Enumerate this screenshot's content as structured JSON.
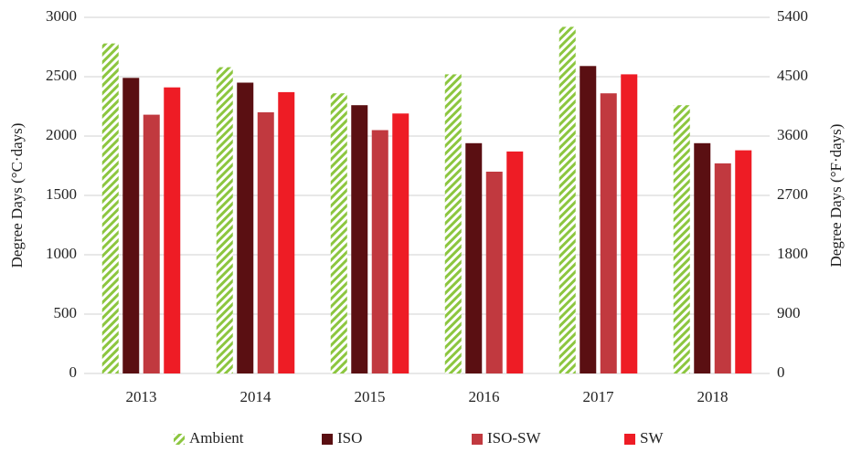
{
  "chart_data": {
    "type": "bar",
    "categories": [
      "2013",
      "2014",
      "2015",
      "2016",
      "2017",
      "2018"
    ],
    "series": [
      {
        "name": "Ambient",
        "color": "#8cc63f",
        "hatch": true,
        "values": [
          2780,
          2580,
          2360,
          2520,
          2920,
          2260
        ]
      },
      {
        "name": "ISO",
        "color": "#5a0f12",
        "values": [
          2490,
          2450,
          2260,
          1940,
          2590,
          1940
        ]
      },
      {
        "name": "ISO-SW",
        "color": "#c1393f",
        "values": [
          2180,
          2200,
          2050,
          1700,
          2360,
          1770
        ]
      },
      {
        "name": "SW",
        "color": "#ee1c25",
        "values": [
          2410,
          2370,
          2190,
          1870,
          2520,
          1880
        ]
      }
    ],
    "ylabel": "Degree Days (°C·days)",
    "y2label": "Degree Days (°F·days)",
    "ylim": [
      0,
      3000
    ],
    "yticks": [
      0,
      500,
      1000,
      1500,
      2000,
      2500,
      3000
    ],
    "y2lim": [
      0,
      5400
    ],
    "y2ticks": [
      0,
      900,
      1800,
      2700,
      3600,
      4500,
      5400
    ],
    "grid": true,
    "legend": "bottom"
  }
}
